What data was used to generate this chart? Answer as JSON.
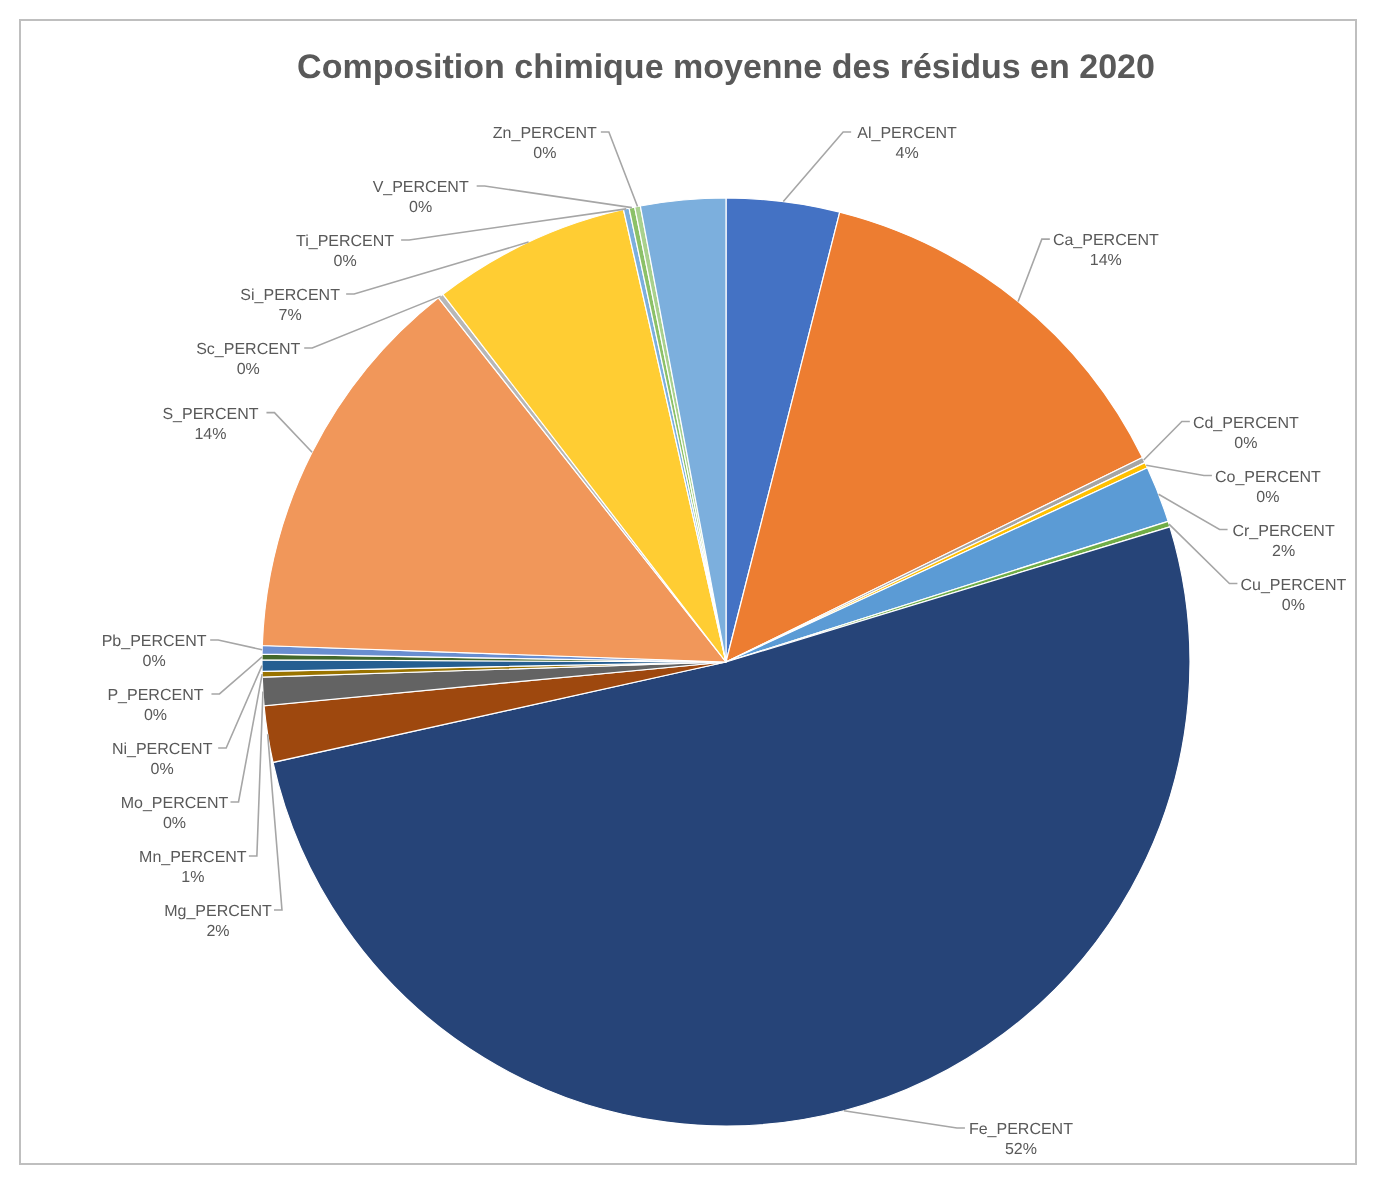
{
  "chart_data": {
    "type": "pie",
    "title": "Composition chimique moyenne des résidus en 2020",
    "categories": [
      "Al_PERCENT",
      "Ca_PERCENT",
      "Cd_PERCENT",
      "Co_PERCENT",
      "Cr_PERCENT",
      "Cu_PERCENT",
      "Fe_PERCENT",
      "Mg_PERCENT",
      "Mn_PERCENT",
      "Mo_PERCENT",
      "Ni_PERCENT",
      "P_PERCENT",
      "Pb_PERCENT",
      "S_PERCENT",
      "Sc_PERCENT",
      "Si_PERCENT",
      "Ti_PERCENT",
      "V_PERCENT",
      "Zn_PERCENT",
      null
    ],
    "values": [
      4,
      14,
      0.2,
      0.2,
      2,
      0.2,
      52,
      2,
      1,
      0.2,
      0.4,
      0.2,
      0.3,
      14,
      0.2,
      7,
      0.2,
      0.2,
      0.2,
      3
    ],
    "value_labels": [
      "4%",
      "14%",
      "0%",
      "0%",
      "2%",
      "0%",
      "52%",
      "2%",
      "1%",
      "0%",
      "0%",
      "0%",
      "0%",
      "14%",
      "0%",
      "7%",
      "0%",
      "0%",
      "0%",
      null
    ],
    "colors": [
      "#4472c4",
      "#ed7d31",
      "#a5a5a5",
      "#ffc000",
      "#5b9bd5",
      "#70ad47",
      "#264478",
      "#9e480e",
      "#636363",
      "#997300",
      "#255e91",
      "#43682b",
      "#698ed0",
      "#f1975a",
      "#b7b7b7",
      "#ffcd33",
      "#7cafdd",
      "#8cc168",
      "#a9d18e",
      "#7cafdd"
    ]
  }
}
